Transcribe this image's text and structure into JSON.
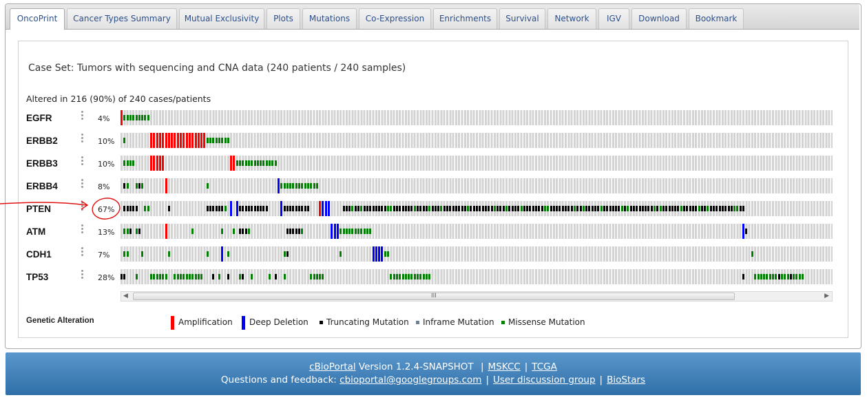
{
  "tabs": [
    {
      "label": "OncoPrint",
      "active": true
    },
    {
      "label": "Cancer Types Summary"
    },
    {
      "label": "Mutual Exclusivity"
    },
    {
      "label": "Plots"
    },
    {
      "label": "Mutations"
    },
    {
      "label": "Co-Expression"
    },
    {
      "label": "Enrichments"
    },
    {
      "label": "Survival"
    },
    {
      "label": "Network"
    },
    {
      "label": "IGV"
    },
    {
      "label": "Download"
    },
    {
      "label": "Bookmark"
    }
  ],
  "case_set": "Case Set: Tumors with sequencing and CNA data (240 patients / 240 samples)",
  "altered_summary": "Altered in 216 (90%) of 240 cases/patients",
  "genes": [
    {
      "name": "EGFR",
      "pct": "4%"
    },
    {
      "name": "ERBB2",
      "pct": "10%"
    },
    {
      "name": "ERBB3",
      "pct": "10%"
    },
    {
      "name": "ERBB4",
      "pct": "8%"
    },
    {
      "name": "PTEN",
      "pct": "67%"
    },
    {
      "name": "ATM",
      "pct": "13%"
    },
    {
      "name": "CDH1",
      "pct": "7%"
    },
    {
      "name": "TP53",
      "pct": "28%"
    }
  ],
  "legend": {
    "title": "Genetic Alteration",
    "items": [
      {
        "label": "Amplification",
        "color": "#ff0000"
      },
      {
        "label": "Deep Deletion",
        "color": "#0000ff"
      },
      {
        "label": "Truncating Mutation",
        "color": "#000000"
      },
      {
        "label": "Inframe Mutation",
        "color": "#708090"
      },
      {
        "label": "Missense Mutation",
        "color": "#008000"
      }
    ]
  },
  "scrollbar_grip": "III",
  "footer": {
    "portal_link": "cBioPortal",
    "version_text": "Version 1.2.4-SNAPSHOT",
    "mskcc": "MSKCC",
    "tcga": "TCGA",
    "questions_text": "Questions and feedback:",
    "email": "cbioportal@googlegroups.com",
    "discussion": "User discussion group",
    "biostars": "BioStars",
    "separator": "|"
  },
  "colors": {
    "amplification": "#ff0000",
    "deep_deletion": "#0000ff",
    "truncating": "#000000",
    "missense": "#008000",
    "annotation": "#e01010"
  }
}
